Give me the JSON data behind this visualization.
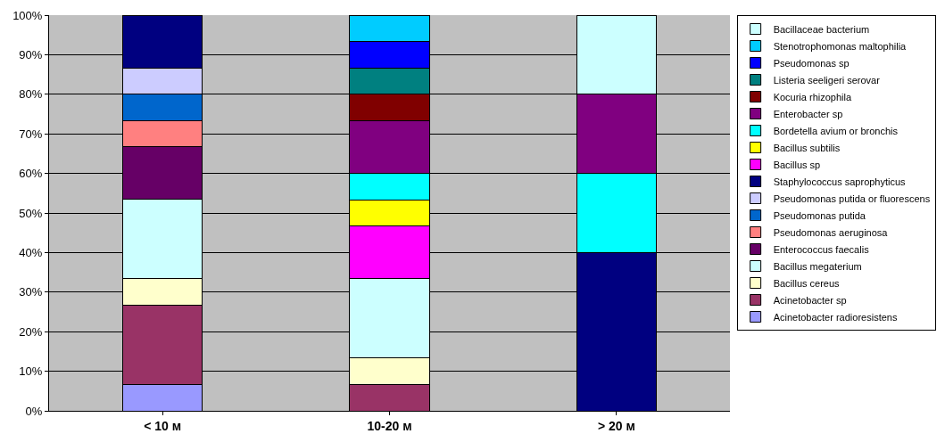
{
  "chart_data": {
    "type": "bar",
    "stacked": true,
    "categories": [
      "< 10 м",
      "10-20 м",
      "> 20 м"
    ],
    "series": [
      {
        "name": "Acinetobacter radioresistens",
        "color": "#9999ff",
        "values": [
          6.7,
          null,
          null
        ]
      },
      {
        "name": "Acinetobacter sp",
        "color": "#993366",
        "values": [
          20,
          6.7,
          null
        ]
      },
      {
        "name": "Bacillus cereus",
        "color": "#ffffcc",
        "values": [
          6.7,
          6.7,
          null
        ]
      },
      {
        "name": "Bacillus megaterium",
        "color": "#ccffff",
        "values": [
          20,
          20,
          null
        ]
      },
      {
        "name": "Enterococcus faecalis",
        "color": "#660066",
        "values": [
          13.3,
          null,
          null
        ]
      },
      {
        "name": "Pseudomonas aeruginosa",
        "color": "#ff8080",
        "values": [
          6.7,
          null,
          null
        ]
      },
      {
        "name": "Pseudomonas putida",
        "color": "#0066cc",
        "values": [
          6.6,
          null,
          null
        ]
      },
      {
        "name": "Pseudomonas putida or fluorescens",
        "color": "#ccccff",
        "values": [
          6.7,
          null,
          null
        ]
      },
      {
        "name": "Staphylococcus saprophyticus",
        "color": "#000080",
        "values": [
          13.3,
          null,
          40
        ]
      },
      {
        "name": "Bacillus sp",
        "color": "#ff00ff",
        "values": [
          null,
          13.3,
          null
        ]
      },
      {
        "name": "Bacillus subtilis",
        "color": "#ffff00",
        "values": [
          null,
          6.6,
          null
        ]
      },
      {
        "name": "Bordetella avium or bronchis",
        "color": "#00ffff",
        "values": [
          null,
          6.7,
          20
        ]
      },
      {
        "name": "Enterobacter sp",
        "color": "#800080",
        "values": [
          null,
          13.3,
          20
        ]
      },
      {
        "name": "Kocuria rhizophila",
        "color": "#800000",
        "values": [
          null,
          6.7,
          null
        ]
      },
      {
        "name": "Listeria seeligeri serovar",
        "color": "#008080",
        "values": [
          null,
          6.6,
          null
        ]
      },
      {
        "name": "Pseudomonas sp",
        "color": "#0000ff",
        "values": [
          null,
          6.7,
          null
        ]
      },
      {
        "name": "Stenotrophomonas maltophilia",
        "color": "#00ccff",
        "values": [
          null,
          6.7,
          null
        ]
      },
      {
        "name": "Bacillaceae bacterium",
        "color": "#ccffff",
        "values": [
          null,
          null,
          20
        ]
      }
    ],
    "ylim": [
      0,
      100
    ],
    "yticks": [
      {
        "value": 0,
        "label": "0%"
      },
      {
        "value": 10,
        "label": "10%"
      },
      {
        "value": 20,
        "label": "20%"
      },
      {
        "value": 30,
        "label": "30%"
      },
      {
        "value": 40,
        "label": "40%"
      },
      {
        "value": 50,
        "label": "50%"
      },
      {
        "value": 60,
        "label": "60%"
      },
      {
        "value": 70,
        "label": "70%"
      },
      {
        "value": 80,
        "label": "80%"
      },
      {
        "value": 90,
        "label": "90%"
      },
      {
        "value": 100,
        "label": "100%"
      }
    ],
    "grid": "y",
    "legend": "right"
  }
}
